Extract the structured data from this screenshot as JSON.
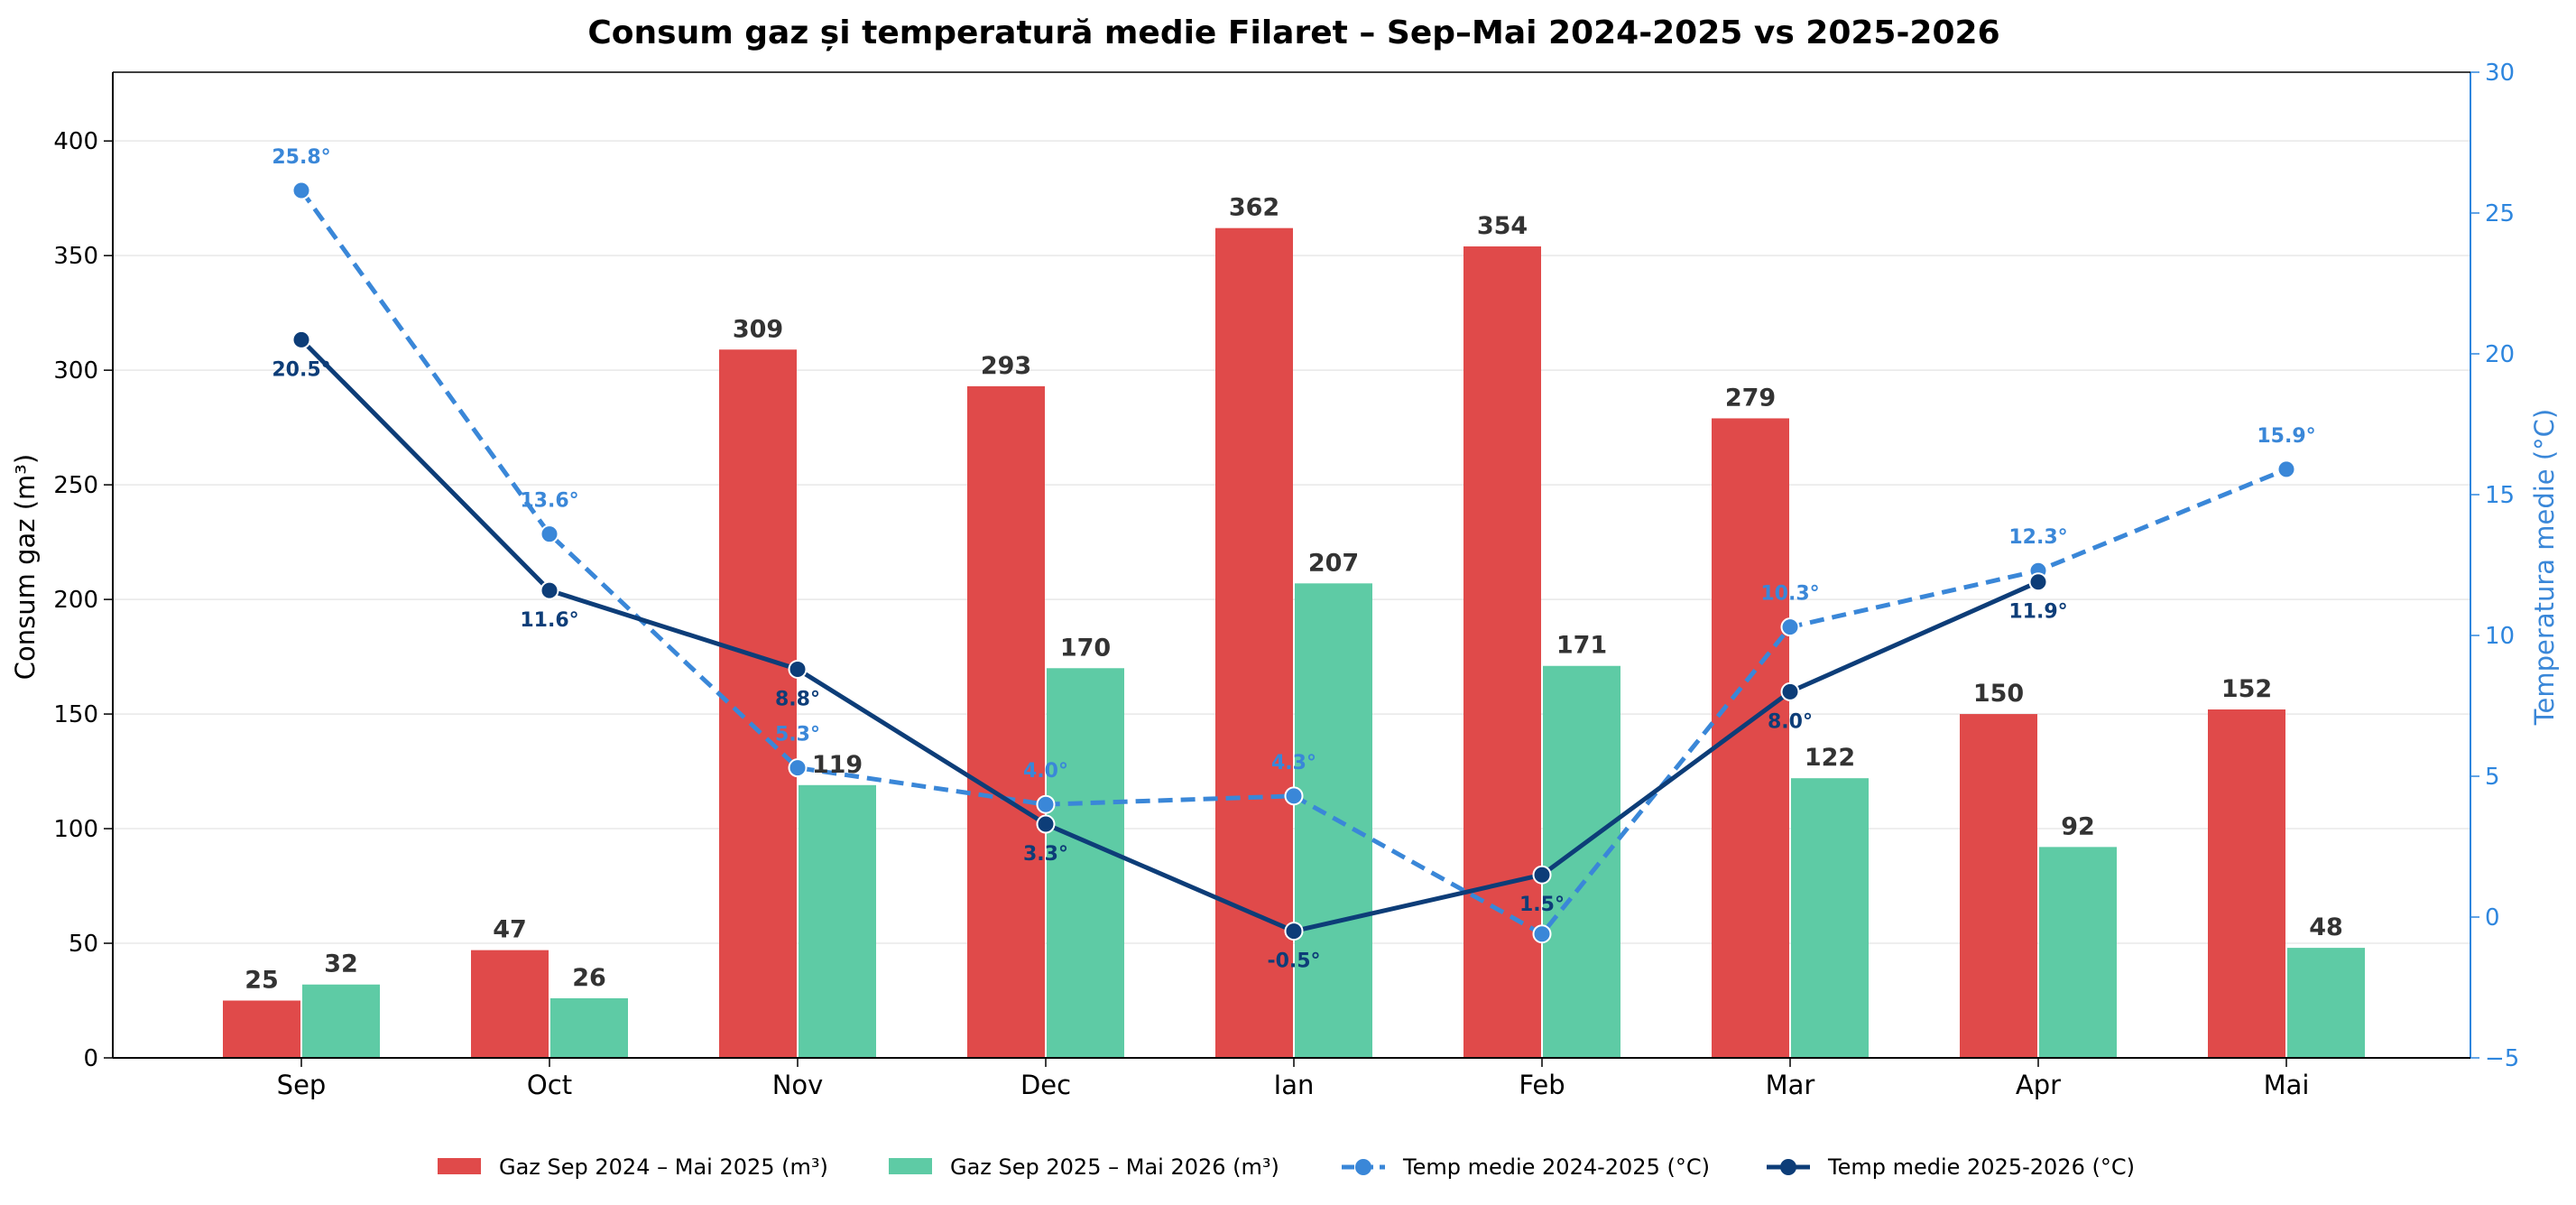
{
  "chart_data": {
    "type": "bar",
    "title": "Consum gaz și temperatură medie Filaret – Sep–Mai 2024-2025 vs 2025-2026",
    "categories": [
      "Sep",
      "Oct",
      "Nov",
      "Dec",
      "Ian",
      "Feb",
      "Mar",
      "Apr",
      "Mai"
    ],
    "ylabel": "Consum gaz (m³)",
    "ylabel_right": "Temperatura medie (°C)",
    "ylim": [
      0,
      430
    ],
    "ylim_right": [
      -5,
      30
    ],
    "yticks": [
      "0",
      "50",
      "100",
      "150",
      "200",
      "250",
      "300",
      "350",
      "400"
    ],
    "yticks_right": [
      "−5",
      "0",
      "5",
      "10",
      "15",
      "20",
      "25",
      "30"
    ],
    "grid": "horizontal",
    "legend_position": "bottom-center",
    "bar_series": [
      {
        "name": "Gaz Sep 2024 – Mai 2025 (m³)",
        "color": "#e04a4a",
        "values": [
          25,
          47,
          309,
          293,
          362,
          354,
          279,
          150,
          152
        ],
        "labels": [
          "25",
          "47",
          "309",
          "293",
          "362",
          "354",
          "279",
          "150",
          "152"
        ]
      },
      {
        "name": "Gaz Sep 2025 – Mai 2026 (m³)",
        "color": "#5ecba5",
        "values": [
          32,
          26,
          119,
          170,
          207,
          171,
          122,
          92,
          48
        ],
        "labels": [
          "32",
          "26",
          "119",
          "170",
          "207",
          "171",
          "122",
          "92",
          "48"
        ]
      }
    ],
    "line_series": [
      {
        "name": "Temp medie 2024-2025 (°C)",
        "color": "#3a87d8",
        "style": "dashed",
        "values": [
          25.8,
          13.6,
          5.3,
          4.0,
          4.3,
          -0.6,
          10.3,
          12.3,
          15.9
        ],
        "labels": [
          "25.8°",
          "13.6°",
          "5.3°",
          "4.0°",
          "4.3°",
          "",
          "10.3°",
          "12.3°",
          "15.9°"
        ]
      },
      {
        "name": "Temp medie 2025-2026 (°C)",
        "color": "#0d3d78",
        "style": "solid",
        "values": [
          20.5,
          11.6,
          8.8,
          3.3,
          -0.5,
          1.5,
          8.0,
          11.9,
          null
        ],
        "labels": [
          "20.5°",
          "11.6°",
          "8.8°",
          "3.3°",
          "-0.5°",
          "1.5°",
          "8.0°",
          "11.9°",
          ""
        ]
      }
    ]
  }
}
